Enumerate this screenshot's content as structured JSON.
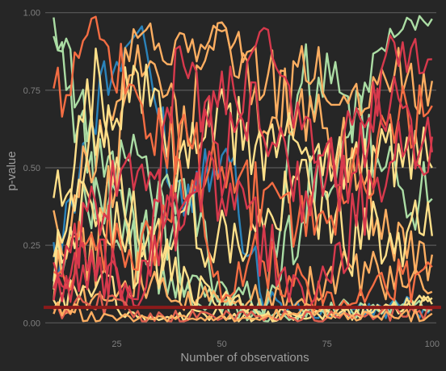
{
  "chart_data": {
    "type": "line",
    "xlabel": "Number of observations",
    "ylabel": "p-value",
    "xlim": [
      8,
      101
    ],
    "ylim": [
      -0.02,
      1.02
    ],
    "x_ticks": [
      25,
      50,
      75,
      100
    ],
    "y_ticks": [
      "0.00",
      "0.25",
      "0.50",
      "0.75",
      "1.00"
    ],
    "grid": "horizontal",
    "threshold": {
      "y": 0.05,
      "color": "#8b1a1a"
    },
    "x": [
      10,
      20,
      30,
      40,
      50,
      60,
      70,
      80,
      90,
      100
    ],
    "series": [
      {
        "color": "#2b83ba",
        "values": [
          0.2,
          0.7,
          0.95,
          0.4,
          0.6,
          0.08,
          0.03,
          0.03,
          0.05,
          0.05
        ]
      },
      {
        "color": "#abdda4",
        "values": [
          0.95,
          0.55,
          0.3,
          0.1,
          0.05,
          0.03,
          0.4,
          0.6,
          0.95,
          0.98
        ]
      },
      {
        "color": "#abdda4",
        "values": [
          0.88,
          0.45,
          0.2,
          0.45,
          0.12,
          0.06,
          0.8,
          0.7,
          0.45,
          0.4
        ]
      },
      {
        "color": "#abdda4",
        "values": [
          0.18,
          0.4,
          0.55,
          0.2,
          0.05,
          0.02,
          0.03,
          0.05,
          0.06,
          0.05
        ]
      },
      {
        "color": "#fdae61",
        "values": [
          0.1,
          0.6,
          0.95,
          0.85,
          0.95,
          0.8,
          0.65,
          0.55,
          0.3,
          0.22
        ]
      },
      {
        "color": "#fdae61",
        "values": [
          0.3,
          0.2,
          0.9,
          0.6,
          0.98,
          0.6,
          0.82,
          0.75,
          0.8,
          0.78
        ]
      },
      {
        "color": "#fdae61",
        "values": [
          0.05,
          0.1,
          0.15,
          0.05,
          0.1,
          0.07,
          0.12,
          0.18,
          0.13,
          0.1
        ]
      },
      {
        "color": "#ffe08a",
        "values": [
          0.35,
          0.6,
          0.8,
          0.5,
          0.65,
          0.55,
          0.6,
          0.5,
          0.55,
          0.5
        ]
      },
      {
        "color": "#ffe08a",
        "values": [
          0.22,
          0.8,
          0.15,
          0.35,
          0.25,
          0.3,
          0.45,
          0.25,
          0.3,
          0.28
        ]
      },
      {
        "color": "#ffe08a",
        "values": [
          0.25,
          0.4,
          0.3,
          0.12,
          0.08,
          0.02,
          0.02,
          0.03,
          0.04,
          0.08
        ]
      },
      {
        "color": "#ffe08a",
        "values": [
          0.05,
          0.15,
          0.01,
          0.02,
          0.03,
          0.02,
          0.03,
          0.03,
          0.04,
          0.06
        ]
      },
      {
        "color": "#f46d43",
        "values": [
          0.72,
          0.98,
          0.65,
          0.58,
          0.45,
          0.4,
          0.32,
          0.4,
          0.62,
          0.7
        ]
      },
      {
        "color": "#f46d43",
        "values": [
          0.12,
          0.3,
          0.18,
          0.45,
          0.15,
          0.2,
          0.1,
          0.05,
          0.12,
          0.18
        ]
      },
      {
        "color": "#d7394c",
        "values": [
          0.1,
          0.2,
          0.05,
          0.9,
          0.5,
          0.95,
          0.55,
          0.45,
          0.88,
          0.85
        ]
      },
      {
        "color": "#d7394c",
        "values": [
          0.08,
          0.35,
          0.55,
          0.3,
          0.75,
          0.65,
          0.4,
          0.6,
          0.7,
          0.55
        ]
      },
      {
        "color": "#d7394c",
        "values": [
          0.15,
          0.2,
          0.1,
          0.4,
          0.45,
          0.25,
          0.05,
          0.3,
          0.55,
          0.6
        ]
      },
      {
        "color": "#e05f4f",
        "values": [
          0.03,
          0.08,
          0.02,
          0.02,
          0.02,
          0.03,
          0.02,
          0.02,
          0.03,
          0.04
        ]
      },
      {
        "color": "#fdae61",
        "values": [
          0.05,
          0.02,
          0.01,
          0.01,
          0.01,
          0.02,
          0.04,
          0.02,
          0.02,
          0.03
        ]
      }
    ]
  }
}
